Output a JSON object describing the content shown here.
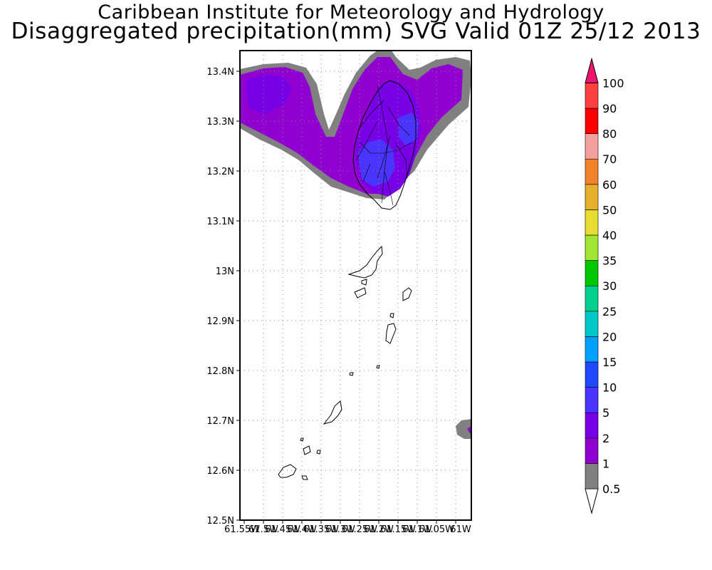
{
  "title_line1": "Caribbean Institute for Meteorology and Hydrology",
  "title_line2": "Disaggregated precipitation(mm) SVG Valid 01Z 25/12 2013",
  "y_ticks": [
    "13.4N",
    "13.3N",
    "13.2N",
    "13.1N",
    "13N",
    "12.9N",
    "12.8N",
    "12.7N",
    "12.6N",
    "12.5N"
  ],
  "x_ticks": [
    "61.55W",
    "61.5W",
    "61.45W",
    "61.4W",
    "61.35W",
    "61.3W",
    "61.25W",
    "61.2W",
    "61.15W",
    "61.1W",
    "61.05W",
    "61W"
  ],
  "colorbar": {
    "levels": [
      "0.5",
      "1",
      "2",
      "5",
      "10",
      "15",
      "20",
      "25",
      "30",
      "35",
      "40",
      "50",
      "60",
      "70",
      "80",
      "90",
      "100"
    ],
    "colors": [
      "#808080",
      "#9000d0",
      "#7800e6",
      "#4a34ff",
      "#2048ff",
      "#00a0ff",
      "#00c8c8",
      "#00d08c",
      "#00c800",
      "#a0e632",
      "#e6dc32",
      "#e6af2d",
      "#f08228",
      "#f5a0a0",
      "#fa0000",
      "#ff4040",
      "#f0146e"
    ],
    "under_color": "#ffffff"
  }
}
